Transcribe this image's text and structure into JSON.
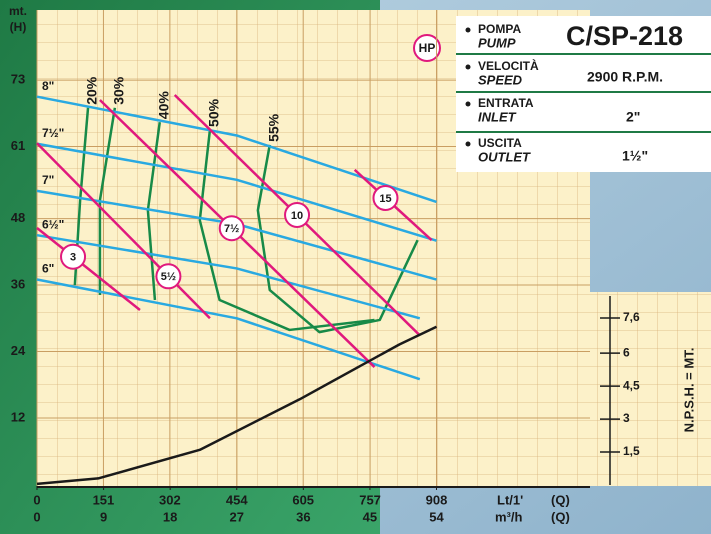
{
  "chart_data": {
    "type": "line",
    "y_label_top": "mt.",
    "y_label": "(H)",
    "hp_label": "HP",
    "x_label": "Lt/1'",
    "x_label_q": "(Q)",
    "x2_label": "m³/h",
    "x2_label_q": "(Q)",
    "y2_label": "N.P.S.H. = MT.",
    "xlim": [
      0,
      950
    ],
    "xticks": [
      0,
      151,
      302,
      454,
      605,
      757,
      908
    ],
    "x2lim": [
      0,
      56.5
    ],
    "x2ticks": [
      0,
      9,
      18,
      27,
      36,
      45,
      54
    ],
    "ylim": [
      0,
      85
    ],
    "yticks": [
      12,
      24,
      36,
      48,
      61,
      73
    ],
    "y2lim": [
      0,
      8.6
    ],
    "y2ticks": [
      {
        "value": 1.5,
        "label": "1,5"
      },
      3,
      {
        "value": 4.5,
        "label": "4,5"
      },
      6,
      {
        "value": 7.6,
        "label": "7,6"
      }
    ],
    "grid": true,
    "diameter_series": [
      {
        "name": "8\"",
        "color": "#29a9e1",
        "x": [
          0,
          454,
          908
        ],
        "values": [
          70,
          63,
          51
        ]
      },
      {
        "name": "7½\"",
        "color": "#29a9e1",
        "x": [
          0,
          454,
          908
        ],
        "values": [
          61.5,
          55,
          44
        ]
      },
      {
        "name": "7\"",
        "color": "#29a9e1",
        "x": [
          0,
          454,
          908
        ],
        "values": [
          53,
          47,
          37
        ]
      },
      {
        "name": "6½\"",
        "color": "#29a9e1",
        "x": [
          0,
          454,
          870
        ],
        "values": [
          45,
          39,
          30
        ]
      },
      {
        "name": "6\"",
        "color": "#29a9e1",
        "x": [
          0,
          454,
          870
        ],
        "values": [
          37,
          30,
          19
        ]
      }
    ],
    "power_series": [
      {
        "name": "3",
        "color": "#e0197d",
        "x": [
          0,
          234
        ],
        "values": [
          46.3,
          31.5
        ]
      },
      {
        "name": "5½",
        "color": "#e0197d",
        "x": [
          0,
          393
        ],
        "values": [
          61.6,
          30
        ]
      },
      {
        "name": "7½",
        "color": "#e0197d",
        "x": [
          143,
          767
        ],
        "values": [
          69.4,
          21.2
        ]
      },
      {
        "name": "10",
        "color": "#e0197d",
        "x": [
          313,
          869
        ],
        "values": [
          70.3,
          27
        ]
      },
      {
        "name": "15",
        "color": "#e0197d",
        "x": [
          722,
          897
        ],
        "values": [
          56.8,
          44.1
        ]
      }
    ],
    "efficiency_series": [
      {
        "name": "20%",
        "color": "#178a48",
        "x": [
          116,
          98,
          86
        ],
        "values": [
          68,
          51.3,
          36
        ]
      },
      {
        "name": "30%",
        "color": "#178a48",
        "x": [
          177,
          143,
          143
        ],
        "values": [
          68,
          51.3,
          34.2
        ]
      },
      {
        "name": "40%",
        "color": "#178a48",
        "x": [
          279,
          252,
          268
        ],
        "values": [
          65.4,
          49.5,
          33.3
        ]
      },
      {
        "name": "50%",
        "color": "#178a48",
        "x": [
          393,
          370,
          415,
          574,
          767
        ],
        "values": [
          64,
          47.7,
          33.3,
          27.9,
          29.7
        ]
      },
      {
        "name": "55%",
        "color": "#178a48",
        "x": [
          529,
          502,
          529,
          642,
          779,
          865
        ],
        "values": [
          61.3,
          49.5,
          35.1,
          27.5,
          29.7,
          44.1
        ]
      }
    ],
    "npsh_series": {
      "color": "#1a1a1a",
      "axis": "y2",
      "x": [
        0,
        139,
        370,
        597,
        824,
        908
      ],
      "values": [
        0.05,
        0.3,
        1.6,
        3.9,
        6.4,
        7.2
      ]
    }
  },
  "spec": {
    "rows": [
      {
        "it": "POMPA",
        "en": "PUMP",
        "value": "C/SP-218"
      },
      {
        "it": "VELOCITÀ",
        "en": "SPEED",
        "value": "2900 R.P.M."
      },
      {
        "it": "ENTRATA",
        "en": "INLET",
        "value": "2\""
      },
      {
        "it": "USCITA",
        "en": "OUTLET",
        "value": "1½\""
      }
    ]
  }
}
